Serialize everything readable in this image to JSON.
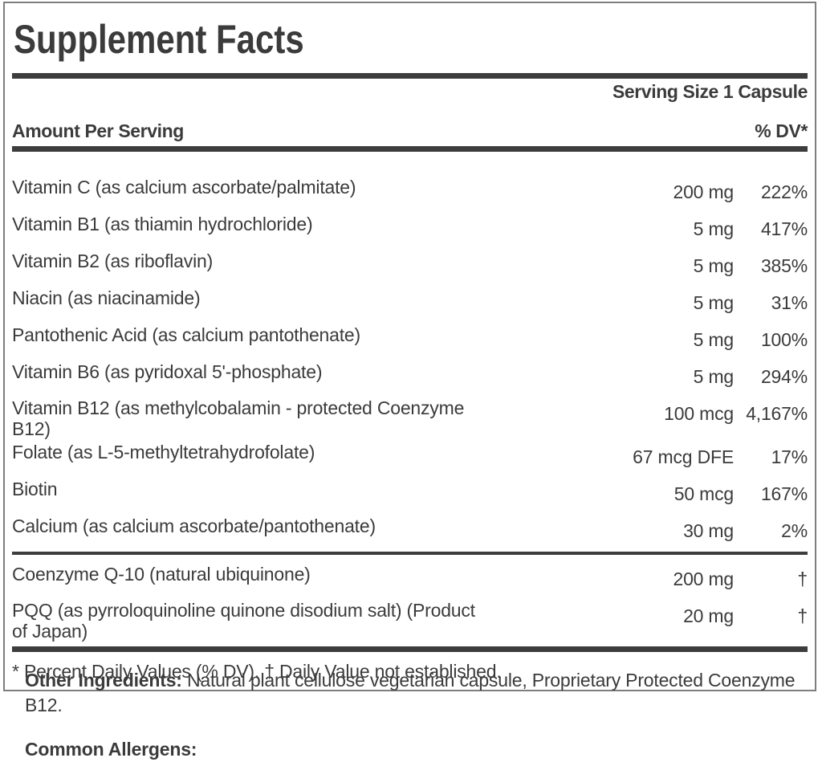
{
  "panel": {
    "title": "Supplement Facts",
    "serving_size": "Serving Size 1 Capsule",
    "amount_header": "Amount Per Serving",
    "dv_header": "% DV*",
    "rows": [
      {
        "name": [
          "Vitamin C (as calcium ascorbate/palmitate)"
        ],
        "amount": "200 mg",
        "dv": "222%"
      },
      {
        "name": [
          "Vitamin B1 (as thiamin hydrochloride)"
        ],
        "amount": "5 mg",
        "dv": "417%"
      },
      {
        "name": [
          "Vitamin B2 (as riboflavin)"
        ],
        "amount": "5 mg",
        "dv": "385%"
      },
      {
        "name": [
          "Niacin (as niacinamide)"
        ],
        "amount": "5 mg",
        "dv": "31%"
      },
      {
        "name": [
          "Pantothenic Acid (as calcium pantothenate)"
        ],
        "amount": "5 mg",
        "dv": "100%"
      },
      {
        "name": [
          "Vitamin B6 (as pyridoxal 5'-phosphate)"
        ],
        "amount": "5 mg",
        "dv": "294%"
      },
      {
        "name": [
          "Vitamin B12 (as methylcobalamin - protected Coenzyme",
          "B12)"
        ],
        "amount": "100 mcg",
        "dv": "4,167%"
      },
      {
        "name": [
          "Folate (as L-5-methyltetrahydrofolate)"
        ],
        "amount": "67 mcg DFE",
        "dv": "17%"
      },
      {
        "name": [
          "Biotin"
        ],
        "amount": "50 mcg",
        "dv": "167%"
      },
      {
        "name": [
          "Calcium (as calcium ascorbate/pantothenate)"
        ],
        "amount": "30 mg",
        "dv": "2%"
      }
    ],
    "rows2": [
      {
        "name": [
          "Coenzyme Q-10 (natural ubiquinone)"
        ],
        "amount": "200 mg",
        "dv": "†"
      },
      {
        "name": [
          "PQQ (as pyrroloquinoline quinone disodium salt) (Product",
          "of Japan)"
        ],
        "amount": "20 mg",
        "dv": "†"
      }
    ],
    "footnote": "* Percent Daily Values (% DV). † Daily Value not established."
  },
  "below": {
    "other_ingredients_label": "Other Ingredients:",
    "other_ingredients_line1": "Natural plant cellulose vegetarian capsule, Proprietary Protected Coenzyme",
    "other_ingredients_line2": "B12.",
    "allergens_label": "Common Allergens:"
  },
  "colors": {
    "text": "#3b3b3b",
    "rule": "#3d3d3d",
    "border": "#7e7e7e",
    "background": "#ffffff"
  }
}
